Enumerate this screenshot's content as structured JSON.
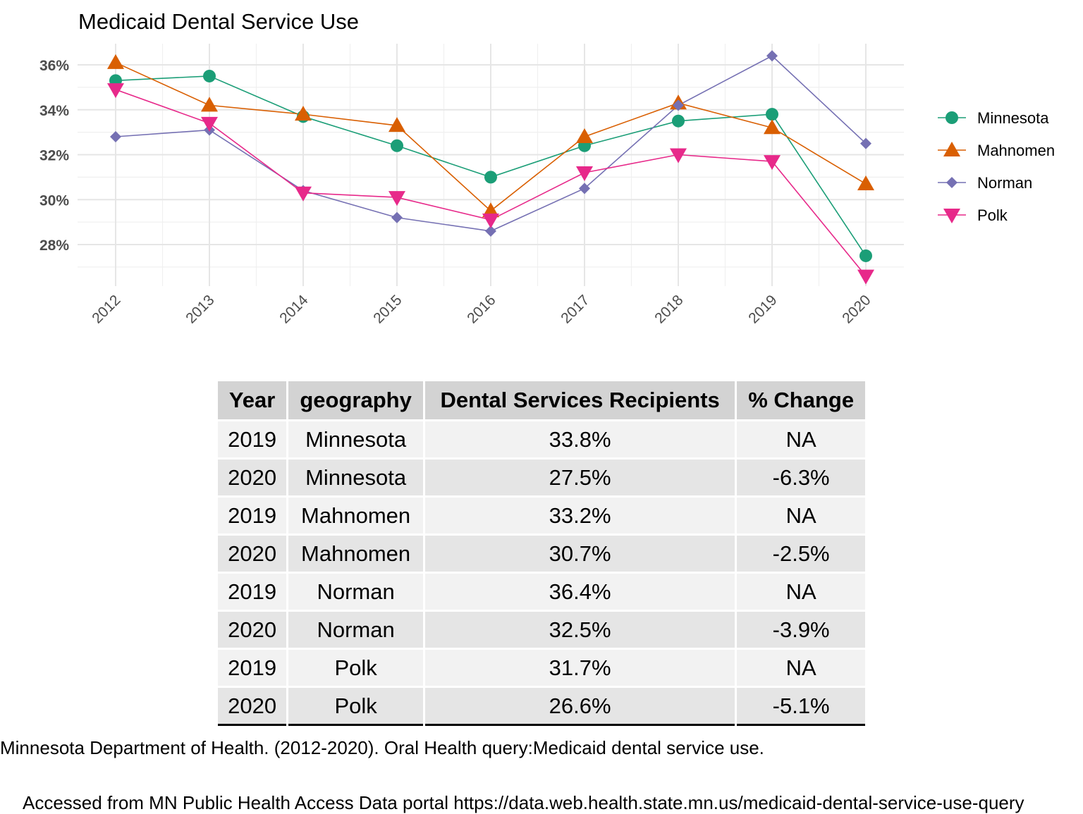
{
  "chart_data": {
    "type": "line",
    "title": "Medicaid Dental Service Use",
    "x": [
      "2012",
      "2013",
      "2014",
      "2015",
      "2016",
      "2017",
      "2018",
      "2019",
      "2020"
    ],
    "ylim": [
      26,
      37
    ],
    "y_ticks": [
      "28%",
      "30%",
      "32%",
      "34%",
      "36%"
    ],
    "y_tick_values": [
      28,
      30,
      32,
      34,
      36
    ],
    "grid": true,
    "legend_position": "right",
    "series": [
      {
        "name": "Minnesota",
        "color": "#1b9e77",
        "marker": "circle",
        "values": [
          35.3,
          35.5,
          33.7,
          32.4,
          31.0,
          32.4,
          33.5,
          33.8,
          27.5
        ]
      },
      {
        "name": "Mahnomen",
        "color": "#d95f02",
        "marker": "triangle-up",
        "values": [
          36.1,
          34.2,
          33.8,
          33.3,
          29.5,
          32.8,
          34.3,
          33.2,
          30.7
        ]
      },
      {
        "name": "Norman",
        "color": "#7570b3",
        "marker": "diamond",
        "values": [
          32.8,
          33.1,
          30.4,
          29.2,
          28.6,
          30.5,
          34.2,
          36.4,
          32.5
        ]
      },
      {
        "name": "Polk",
        "color": "#e7298a",
        "marker": "triangle-down",
        "values": [
          34.9,
          33.4,
          30.3,
          30.1,
          29.1,
          31.2,
          32.0,
          31.7,
          26.6
        ]
      }
    ]
  },
  "table": {
    "headers": [
      "Year",
      "geography",
      "Dental Services Recipients",
      "% Change"
    ],
    "rows": [
      [
        "2019",
        "Minnesota",
        "33.8%",
        "NA"
      ],
      [
        "2020",
        "Minnesota",
        "27.5%",
        "-6.3%"
      ],
      [
        "2019",
        "Mahnomen",
        "33.2%",
        "NA"
      ],
      [
        "2020",
        "Mahnomen",
        "30.7%",
        "-2.5%"
      ],
      [
        "2019",
        "Norman",
        "36.4%",
        "NA"
      ],
      [
        "2020",
        "Norman",
        "32.5%",
        "-3.9%"
      ],
      [
        "2019",
        "Polk",
        "31.7%",
        "NA"
      ],
      [
        "2020",
        "Polk",
        "26.6%",
        "-5.1%"
      ]
    ]
  },
  "captions": {
    "source": "Minnesota Department of Health. (2012-2020). Oral Health query:Medicaid dental service use.",
    "access": "Accessed from MN Public Health Access Data portal https://data.web.health.state.mn.us/medicaid-dental-service-use-query"
  }
}
